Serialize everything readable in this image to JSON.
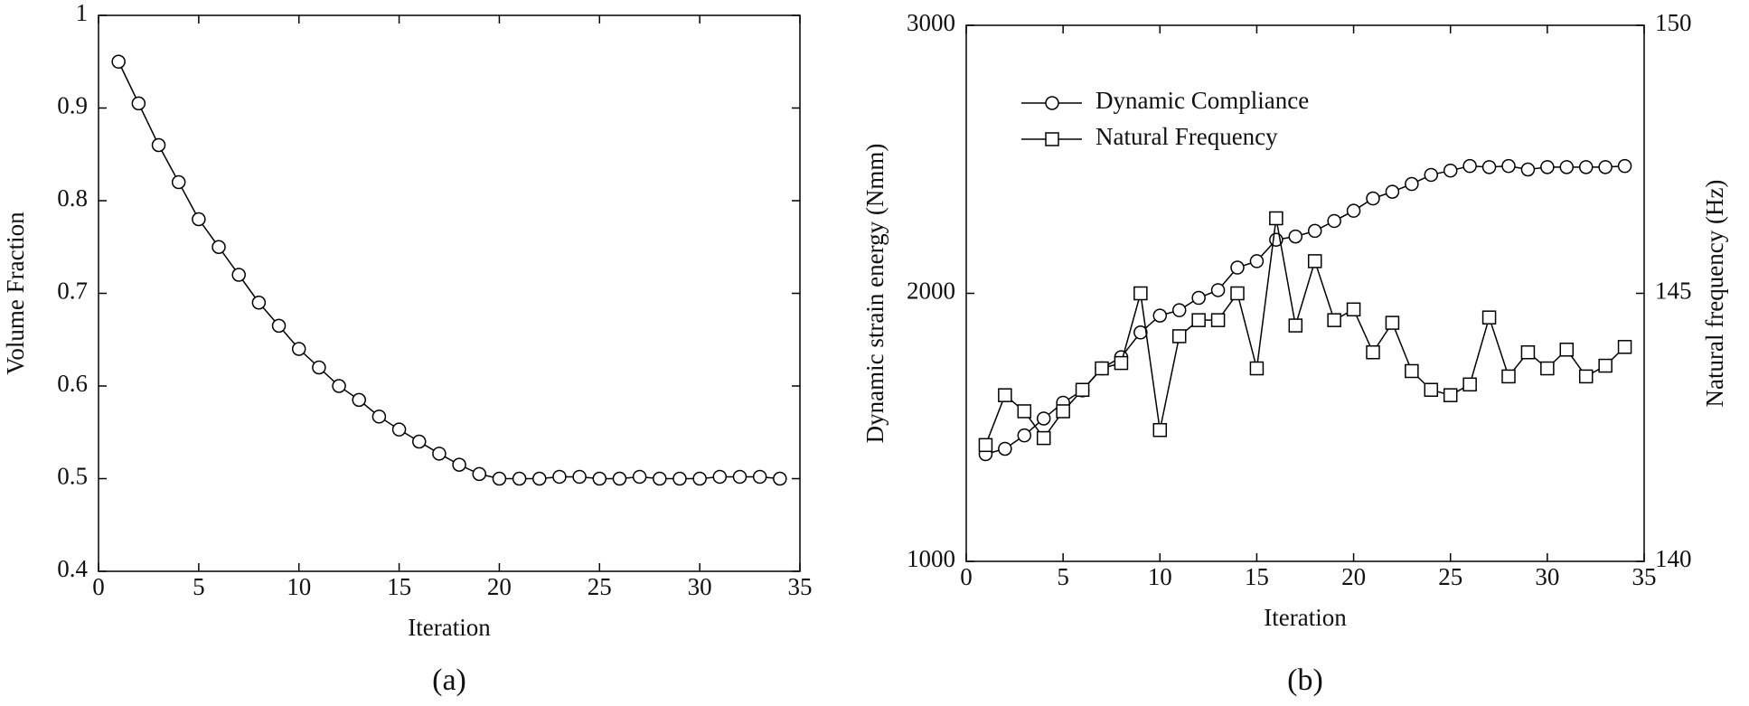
{
  "chart_data": [
    {
      "type": "line",
      "caption": "(a)",
      "xlabel": "Iteration",
      "ylabel": "Volume Fraction",
      "x": [
        1,
        2,
        3,
        4,
        5,
        6,
        7,
        8,
        9,
        10,
        11,
        12,
        13,
        14,
        15,
        16,
        17,
        18,
        19,
        20,
        21,
        22,
        23,
        24,
        25,
        26,
        27,
        28,
        29,
        30,
        31,
        32,
        33,
        34
      ],
      "xlim": [
        0,
        35
      ],
      "xticks": [
        0,
        5,
        10,
        15,
        20,
        25,
        30,
        35
      ],
      "ylim": [
        0.4,
        1
      ],
      "yticks": [
        0.4,
        0.5,
        0.6,
        0.7,
        0.8,
        0.9,
        1
      ],
      "series": [
        {
          "color": "#000000",
          "marker": "circle",
          "values": [
            0.95,
            0.905,
            0.86,
            0.82,
            0.78,
            0.75,
            0.72,
            0.69,
            0.665,
            0.64,
            0.62,
            0.6,
            0.585,
            0.567,
            0.553,
            0.54,
            0.527,
            0.515,
            0.505,
            0.5,
            0.5,
            0.5,
            0.502,
            0.502,
            0.5,
            0.5,
            0.502,
            0.5,
            0.5,
            0.5,
            0.502,
            0.502,
            0.502,
            0.5
          ]
        }
      ]
    },
    {
      "type": "line",
      "caption": "(b)",
      "xlabel": "Iteration",
      "ylabel": "Dynamic strain energy (Nmm)",
      "y2label": "Natural frequency (Hz)",
      "x": [
        1,
        2,
        3,
        4,
        5,
        6,
        7,
        8,
        9,
        10,
        11,
        12,
        13,
        14,
        15,
        16,
        17,
        18,
        19,
        20,
        21,
        22,
        23,
        24,
        25,
        26,
        27,
        28,
        29,
        30,
        31,
        32,
        33,
        34
      ],
      "xlim": [
        0,
        35
      ],
      "xticks": [
        0,
        5,
        10,
        15,
        20,
        25,
        30,
        35
      ],
      "ylim": [
        1000,
        3000
      ],
      "yticks": [
        1000,
        2000,
        3000
      ],
      "y2lim": [
        140,
        150
      ],
      "y2ticks": [
        140,
        145,
        150
      ],
      "legend": "upper left",
      "series": [
        {
          "name": "Dynamic Compliance",
          "color": "#000000",
          "marker": "circle",
          "values": [
            1400,
            1420,
            1470,
            1533,
            1592,
            1638,
            1720,
            1762,
            1854,
            1917,
            1937,
            1983,
            2012,
            2096,
            2120,
            2200,
            2212,
            2233,
            2270,
            2308,
            2354,
            2379,
            2408,
            2442,
            2458,
            2475,
            2471,
            2475,
            2462,
            2471,
            2471,
            2471,
            2471,
            2475
          ]
        },
        {
          "name": "Natural Frequency",
          "color": "#000000",
          "marker": "square",
          "axis": "y2",
          "values": [
            142.17,
            143.1,
            142.8,
            142.3,
            142.8,
            143.2,
            143.6,
            143.7,
            145.0,
            142.45,
            144.2,
            144.5,
            144.5,
            145.0,
            143.6,
            146.4,
            144.4,
            145.6,
            144.5,
            144.7,
            143.9,
            144.45,
            143.55,
            143.2,
            143.1,
            143.3,
            144.55,
            143.45,
            143.9,
            143.6,
            143.95,
            143.45,
            143.65,
            144.0
          ]
        }
      ]
    }
  ]
}
